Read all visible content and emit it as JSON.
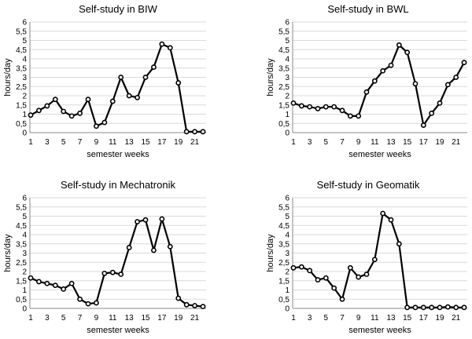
{
  "chart_data": [
    {
      "type": "line",
      "title": "Self-study in BIW",
      "xlabel": "semester weeks",
      "ylabel": "hours/day",
      "ylim": [
        0,
        6
      ],
      "ytick_labels": [
        "0",
        "0,5",
        "1",
        "1,5",
        "2",
        "2,5",
        "3",
        "3,5",
        "4",
        "4,5",
        "5",
        "5,5",
        "6"
      ],
      "xtick_labels": [
        "1",
        "3",
        "5",
        "7",
        "9",
        "11",
        "13",
        "15",
        "17",
        "19",
        "21"
      ],
      "x": [
        1,
        2,
        3,
        4,
        5,
        6,
        7,
        8,
        9,
        10,
        11,
        12,
        13,
        14,
        15,
        16,
        17,
        18,
        19,
        20,
        21,
        22
      ],
      "values": [
        0.95,
        1.2,
        1.45,
        1.8,
        1.15,
        0.9,
        1.05,
        1.8,
        0.35,
        0.55,
        1.7,
        3.0,
        2.0,
        1.9,
        3.0,
        3.55,
        4.8,
        4.6,
        2.7,
        0.05,
        0.05,
        0.05
      ]
    },
    {
      "type": "line",
      "title": "Self-study in BWL",
      "xlabel": "semester weeks",
      "ylabel": "hours/day",
      "ylim": [
        0,
        6
      ],
      "ytick_labels": [
        "0",
        "0,5",
        "1",
        "1,5",
        "2",
        "2,5",
        "3",
        "3,5",
        "4",
        "4,5",
        "5",
        "5,5",
        "6"
      ],
      "xtick_labels": [
        "1",
        "3",
        "5",
        "7",
        "9",
        "11",
        "13",
        "15",
        "17",
        "19",
        "21"
      ],
      "x": [
        1,
        2,
        3,
        4,
        5,
        6,
        7,
        8,
        9,
        10,
        11,
        12,
        13,
        14,
        15,
        16,
        17,
        18,
        19,
        20,
        21,
        22
      ],
      "values": [
        1.6,
        1.45,
        1.4,
        1.3,
        1.4,
        1.4,
        1.2,
        0.9,
        0.9,
        2.2,
        2.8,
        3.35,
        3.65,
        4.75,
        4.35,
        2.65,
        0.4,
        1.05,
        1.6,
        2.6,
        3.0,
        3.8
      ]
    },
    {
      "type": "line",
      "title": "Self-study in Mechatronik",
      "xlabel": "semester weeks",
      "ylabel": "hours/day",
      "ylim": [
        0,
        6
      ],
      "ytick_labels": [
        "0",
        "0,5",
        "1",
        "1,5",
        "2",
        "2,5",
        "3",
        "3,5",
        "4",
        "4,5",
        "5",
        "5,5",
        "6"
      ],
      "xtick_labels": [
        "1",
        "3",
        "5",
        "7",
        "9",
        "11",
        "13",
        "15",
        "17",
        "19",
        "21"
      ],
      "x": [
        1,
        2,
        3,
        4,
        5,
        6,
        7,
        8,
        9,
        10,
        11,
        12,
        13,
        14,
        15,
        16,
        17,
        18,
        19,
        20,
        21,
        22
      ],
      "values": [
        1.65,
        1.45,
        1.35,
        1.25,
        1.05,
        1.35,
        0.5,
        0.25,
        0.3,
        1.9,
        1.95,
        1.85,
        3.3,
        4.7,
        4.8,
        3.15,
        4.85,
        3.35,
        0.55,
        0.2,
        0.15,
        0.1
      ]
    },
    {
      "type": "line",
      "title": "Self-study in Geomatik",
      "xlabel": "semester weeks",
      "ylabel": "hours/day",
      "ylim": [
        0,
        6
      ],
      "ytick_labels": [
        "0",
        "0,5",
        "1",
        "1,5",
        "2",
        "2,5",
        "3",
        "3,5",
        "4",
        "4,5",
        "5",
        "5,5",
        "6"
      ],
      "xtick_labels": [
        "1",
        "3",
        "5",
        "7",
        "9",
        "11",
        "13",
        "15",
        "17",
        "19",
        "21"
      ],
      "x": [
        1,
        2,
        3,
        4,
        5,
        6,
        7,
        8,
        9,
        10,
        11,
        12,
        13,
        14,
        15,
        16,
        17,
        18,
        19,
        20,
        21,
        22
      ],
      "values": [
        2.2,
        2.25,
        2.05,
        1.55,
        1.65,
        1.1,
        0.5,
        2.2,
        1.7,
        1.85,
        2.65,
        5.15,
        4.8,
        3.5,
        0.05,
        0.05,
        0.05,
        0.05,
        0.05,
        0.08,
        0.05,
        0.05
      ]
    }
  ]
}
